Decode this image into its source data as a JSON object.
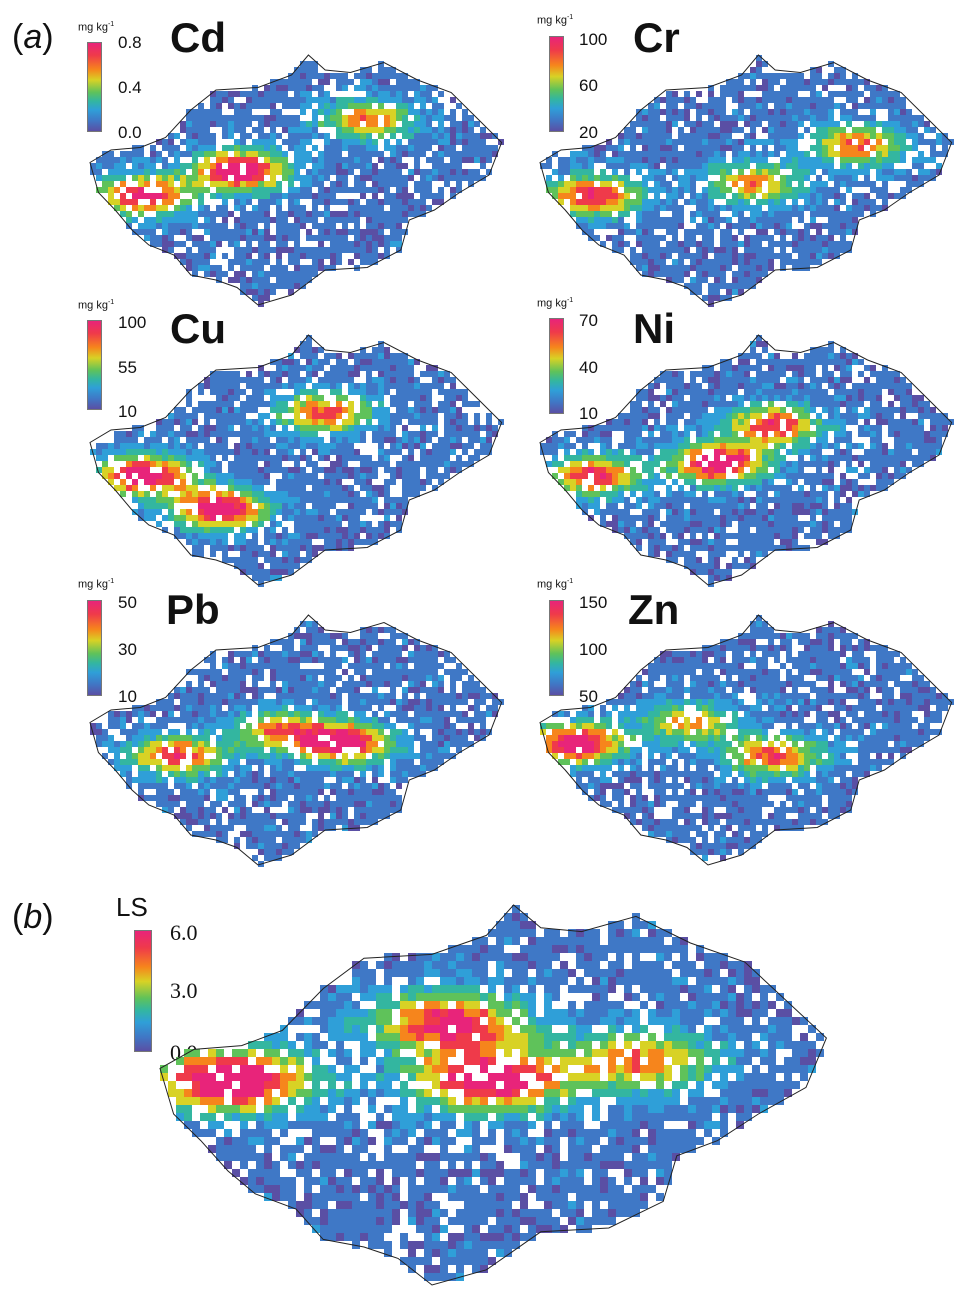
{
  "figure": {
    "part_a_label": "a",
    "part_b_label": "b",
    "panels": [
      {
        "element": "Cd",
        "unit": "mg kg",
        "unit_sup": "-1",
        "ticks": [
          "0.8",
          "0.4",
          "0.0"
        ]
      },
      {
        "element": "Cr",
        "unit": "mg kg",
        "unit_sup": "-1",
        "ticks": [
          "100",
          "60",
          "20"
        ]
      },
      {
        "element": "Cu",
        "unit": "mg kg",
        "unit_sup": "-1",
        "ticks": [
          "100",
          "55",
          "10"
        ]
      },
      {
        "element": "Ni",
        "unit": "mg kg",
        "unit_sup": "-1",
        "ticks": [
          "70",
          "40",
          "10"
        ]
      },
      {
        "element": "Pb",
        "unit": "mg kg",
        "unit_sup": "-1",
        "ticks": [
          "50",
          "30",
          "10"
        ]
      },
      {
        "element": "Zn",
        "unit": "mg kg",
        "unit_sup": "-1",
        "ticks": [
          "150",
          "100",
          "50"
        ]
      }
    ],
    "ls_panel": {
      "label": "LS",
      "ticks": [
        "6.0",
        "3.0",
        "0.0"
      ]
    },
    "colorscale": [
      "#5a4fa4",
      "#3f78c6",
      "#2f9fd8",
      "#33b6a0",
      "#5fc25a",
      "#d8d225",
      "#f6851c",
      "#ef3a4a",
      "#e8247a"
    ]
  }
}
